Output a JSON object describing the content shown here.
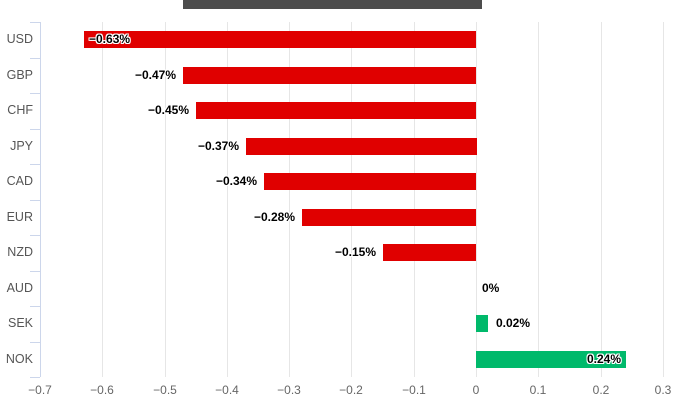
{
  "header": {
    "divider_bar_color": "#4d4d4d"
  },
  "chart_data": {
    "type": "bar",
    "orientation": "horizontal",
    "title": "",
    "xlabel": "",
    "ylabel": "",
    "units": "%",
    "categories": [
      "USD",
      "GBP",
      "CHF",
      "JPY",
      "CAD",
      "EUR",
      "NZD",
      "AUD",
      "SEK",
      "NOK"
    ],
    "values": [
      -0.63,
      -0.47,
      -0.45,
      -0.37,
      -0.34,
      -0.28,
      -0.15,
      0,
      0.02,
      0.24
    ],
    "value_labels": [
      "−0.63%",
      "−0.47%",
      "−0.45%",
      "−0.37%",
      "−0.34%",
      "−0.28%",
      "−0.15%",
      "0%",
      "0.02%",
      "0.24%"
    ],
    "label_inside": [
      true,
      false,
      false,
      false,
      false,
      false,
      false,
      false,
      false,
      true
    ],
    "x_ticks": [
      -0.7,
      -0.6,
      -0.5,
      -0.4,
      -0.3,
      -0.2,
      -0.1,
      0,
      0.1,
      0.2,
      0.3
    ],
    "x_tick_labels": [
      "−0.7",
      "−0.6",
      "−0.5",
      "−0.4",
      "−0.3",
      "−0.2",
      "−0.1",
      "0",
      "0.1",
      "0.2",
      "0.3"
    ],
    "xlim": [
      -0.7,
      0.3
    ],
    "grid": true,
    "legend": "none",
    "colors": {
      "negative_bar": "#e00000",
      "positive_bar": "#00b96b",
      "grid_line": "#e6e6e6",
      "axis_line": "#ccd6eb",
      "axis_label": "#666666",
      "category_label": "#555555",
      "data_label": "#000000"
    }
  }
}
